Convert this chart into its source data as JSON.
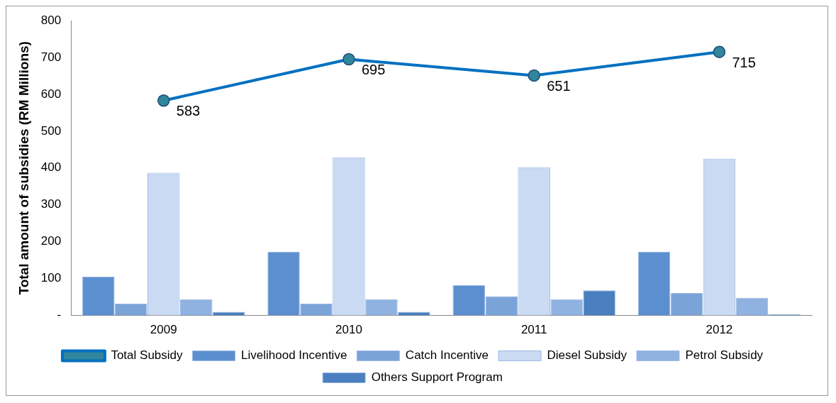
{
  "chart_data": {
    "type": "bar",
    "ylabel": "Total amount of subsidies (RM Millions)",
    "categories": [
      "2009",
      "2010",
      "2011",
      "2012"
    ],
    "series": [
      {
        "name": "Livelihood Incentive",
        "color": "#5b8fd0",
        "values": [
          105,
          173,
          82,
          173
        ]
      },
      {
        "name": "Catch Incentive",
        "color": "#7aa3d8",
        "values": [
          32,
          32,
          52,
          61
        ]
      },
      {
        "name": "Diesel Subsidy",
        "color": "#c9daf2",
        "values": [
          387,
          429,
          402,
          425
        ]
      },
      {
        "name": "Petrol Subsidy",
        "color": "#8fb2e0",
        "values": [
          44,
          44,
          44,
          48
        ]
      },
      {
        "name": "Others Support Program",
        "color": "#4a7fc0",
        "values": [
          10,
          10,
          68,
          3
        ]
      },
      {
        "name": "Total Subsidy",
        "type": "line",
        "color": "#0070c0",
        "values": [
          583,
          695,
          651,
          715
        ],
        "value_labels": [
          "583",
          "695",
          "651",
          "715"
        ]
      }
    ],
    "ylim": [
      0,
      800
    ],
    "yticks": [
      {
        "value": 0,
        "label": "-"
      },
      100,
      200,
      300,
      400,
      500,
      600,
      700,
      800
    ],
    "grid": false,
    "legend": "bottom",
    "marker": "circle",
    "line_style": "solid"
  }
}
